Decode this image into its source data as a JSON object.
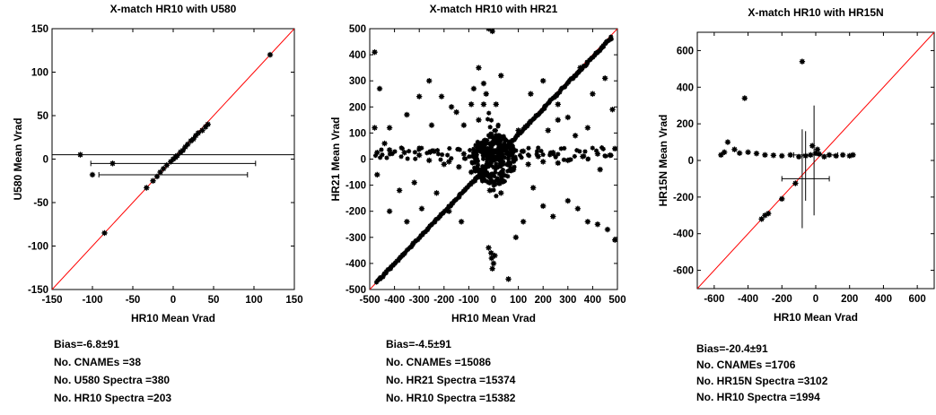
{
  "chart_data": [
    {
      "type": "scatter",
      "title": "X-match HR10 with U580",
      "xlabel": "HR10 Mean Vrad",
      "ylabel": "U580 Mean Vrad",
      "xlim": [
        -150,
        150
      ],
      "ylim": [
        -150,
        150
      ],
      "xticks": [
        -150,
        -100,
        -50,
        0,
        50,
        100,
        150
      ],
      "yticks": [
        -150,
        -100,
        -50,
        0,
        50,
        100,
        150
      ],
      "diagonal_color": "#ff0000",
      "grid": false,
      "points": [
        [
          120,
          120
        ],
        [
          43,
          40
        ],
        [
          40,
          37
        ],
        [
          36,
          33
        ],
        [
          31,
          30
        ],
        [
          28,
          27
        ],
        [
          25,
          23
        ],
        [
          22,
          21
        ],
        [
          18,
          17
        ],
        [
          15,
          14
        ],
        [
          12,
          10
        ],
        [
          9,
          8
        ],
        [
          5,
          4
        ],
        [
          3,
          2
        ],
        [
          0,
          0
        ],
        [
          -3,
          -3
        ],
        [
          -8,
          -7
        ],
        [
          -12,
          -11
        ],
        [
          -16,
          -15
        ],
        [
          -20,
          -20
        ],
        [
          -25,
          -25
        ],
        [
          -33,
          -33
        ],
        [
          -85,
          -85
        ],
        [
          -115,
          5
        ],
        [
          -75,
          -5
        ],
        [
          -100,
          -18
        ]
      ],
      "errorbars": [
        {
          "x": 0,
          "y": 5,
          "xerr": 165
        },
        {
          "x": 0,
          "y": -5,
          "xerr": 102
        },
        {
          "x": 0,
          "y": -18,
          "xerr": 92
        }
      ],
      "stats": {
        "bias": "Bias=-6.8±91",
        "cnames": "No. CNAMEs =38",
        "spectra_a": "No. U580 Spectra =380",
        "spectra_b": "No. HR10 Spectra =203"
      }
    },
    {
      "type": "scatter",
      "title": "X-match HR10 with HR21",
      "xlabel": "HR10 Mean Vrad",
      "ylabel": "HR21 Mean Vrad",
      "xlim": [
        -500,
        500
      ],
      "ylim": [
        -500,
        500
      ],
      "xticks": [
        -500,
        -400,
        -300,
        -200,
        -100,
        0,
        100,
        200,
        300,
        400,
        500
      ],
      "yticks": [
        -500,
        -400,
        -300,
        -200,
        -100,
        0,
        100,
        200,
        300,
        400,
        500
      ],
      "diagonal_color": "#ff0000",
      "grid": false,
      "points": [
        [
          -480,
          410
        ],
        [
          -440,
          60
        ],
        [
          -380,
          -120
        ],
        [
          -320,
          -90
        ],
        [
          -260,
          300
        ],
        [
          -210,
          240
        ],
        [
          -170,
          200
        ],
        [
          -150,
          180
        ],
        [
          -120,
          130
        ],
        [
          -90,
          210
        ],
        [
          -60,
          350
        ],
        [
          -40,
          210
        ],
        [
          -20,
          500
        ],
        [
          -5,
          490
        ],
        [
          10,
          210
        ],
        [
          30,
          320
        ],
        [
          -250,
          130
        ],
        [
          -300,
          240
        ],
        [
          -350,
          170
        ],
        [
          -420,
          120
        ],
        [
          -460,
          270
        ],
        [
          -480,
          120
        ],
        [
          -470,
          -60
        ],
        [
          -420,
          -200
        ],
        [
          -350,
          -240
        ],
        [
          -290,
          -190
        ],
        [
          -230,
          -130
        ],
        [
          -180,
          -200
        ],
        [
          -130,
          -240
        ],
        [
          -20,
          -340
        ],
        [
          -10,
          -360
        ],
        [
          0,
          -400
        ],
        [
          -5,
          -420
        ],
        [
          5,
          -370
        ],
        [
          -8,
          -380
        ],
        [
          60,
          -460
        ],
        [
          90,
          -300
        ],
        [
          120,
          -240
        ],
        [
          160,
          -110
        ],
        [
          200,
          -180
        ],
        [
          240,
          -220
        ],
        [
          300,
          -160
        ],
        [
          340,
          -190
        ],
        [
          380,
          -240
        ],
        [
          420,
          -250
        ],
        [
          460,
          -270
        ],
        [
          490,
          -310
        ],
        [
          100,
          110
        ],
        [
          150,
          250
        ],
        [
          200,
          300
        ],
        [
          260,
          210
        ],
        [
          300,
          160
        ],
        [
          350,
          350
        ],
        [
          400,
          250
        ],
        [
          450,
          310
        ],
        [
          480,
          190
        ],
        [
          490,
          40
        ],
        [
          430,
          -40
        ],
        [
          380,
          120
        ],
        [
          330,
          90
        ],
        [
          260,
          150
        ],
        [
          220,
          110
        ],
        [
          -30,
          250
        ],
        [
          -60,
          150
        ],
        [
          -80,
          270
        ],
        [
          40,
          80
        ],
        [
          -40,
          290
        ],
        [
          10,
          90
        ],
        [
          -10,
          60
        ],
        [
          15,
          -80
        ],
        [
          -15,
          -120
        ],
        [
          30,
          -130
        ],
        [
          70,
          40
        ],
        [
          -70,
          30
        ],
        [
          120,
          30
        ],
        [
          -120,
          20
        ],
        [
          180,
          10
        ],
        [
          -180,
          -10
        ],
        [
          240,
          25
        ],
        [
          -240,
          30
        ],
        [
          300,
          -5
        ],
        [
          -300,
          15
        ],
        [
          360,
          10
        ],
        [
          -360,
          25
        ],
        [
          420,
          20
        ],
        [
          -420,
          35
        ],
        [
          470,
          15
        ],
        [
          -470,
          25
        ],
        [
          80,
          -40
        ],
        [
          -90,
          -50
        ],
        [
          140,
          -20
        ],
        [
          -140,
          -30
        ],
        [
          200,
          -10
        ],
        [
          -200,
          -20
        ],
        [
          260,
          -15
        ],
        [
          -260,
          -5
        ]
      ],
      "dense_bands": [
        {
          "label": "diagonal",
          "from": [
            -470,
            -470
          ],
          "to": [
            480,
            470
          ]
        },
        {
          "label": "horizontal",
          "from": [
            -480,
            20
          ],
          "to": [
            480,
            20
          ]
        },
        {
          "label": "vertical",
          "from": [
            0,
            -130
          ],
          "to": [
            0,
            180
          ]
        }
      ],
      "stats": {
        "bias": "Bias=-4.5±91",
        "cnames": "No. CNAMEs =15086",
        "spectra_a": "No. HR21 Spectra =15374",
        "spectra_b": "No. HR10 Spectra =15382"
      }
    },
    {
      "type": "scatter",
      "title": "X-match HR10 with HR15N",
      "xlabel": "HR10 Mean Vrad",
      "ylabel": "HR15N Mean Vrad",
      "xlim": [
        -700,
        700
      ],
      "ylim": [
        -700,
        700
      ],
      "xticks": [
        -600,
        -400,
        -200,
        0,
        200,
        400,
        600
      ],
      "yticks": [
        -600,
        -400,
        -200,
        0,
        200,
        400,
        600
      ],
      "diagonal_color": "#ff0000",
      "grid": false,
      "points": [
        [
          -80,
          540
        ],
        [
          -420,
          340
        ],
        [
          -520,
          100
        ],
        [
          -480,
          60
        ],
        [
          -450,
          40
        ],
        [
          -400,
          45
        ],
        [
          -350,
          38
        ],
        [
          -300,
          30
        ],
        [
          -250,
          28
        ],
        [
          -200,
          25
        ],
        [
          -150,
          30
        ],
        [
          -100,
          20
        ],
        [
          -60,
          25
        ],
        [
          -30,
          30
        ],
        [
          0,
          40
        ],
        [
          20,
          35
        ],
        [
          50,
          20
        ],
        [
          80,
          30
        ],
        [
          120,
          25
        ],
        [
          160,
          30
        ],
        [
          200,
          25
        ],
        [
          220,
          30
        ],
        [
          -560,
          30
        ],
        [
          -540,
          45
        ],
        [
          -20,
          80
        ],
        [
          10,
          60
        ],
        [
          -320,
          -320
        ],
        [
          -300,
          -300
        ],
        [
          -280,
          -290
        ],
        [
          -200,
          -210
        ],
        [
          -120,
          -125
        ]
      ],
      "errorbars": [
        {
          "x": 0,
          "y": 30,
          "xerr": 130,
          "yerr": 0
        },
        {
          "x": -10,
          "y": 0,
          "xerr": 0,
          "yerr": 300
        },
        {
          "x": -80,
          "y": -100,
          "xerr": 0,
          "yerr": 270
        },
        {
          "x": -60,
          "y": -100,
          "xerr": 140,
          "yerr": 0
        },
        {
          "x": -60,
          "y": -30,
          "xerr": 0,
          "yerr": 190
        }
      ],
      "stats": {
        "bias": "Bias=-20.4±91",
        "cnames": "No. CNAMEs =1706",
        "spectra_a": "No. HR15N Spectra =3102",
        "spectra_b": "No. HR10 Spectra =1994"
      }
    }
  ]
}
